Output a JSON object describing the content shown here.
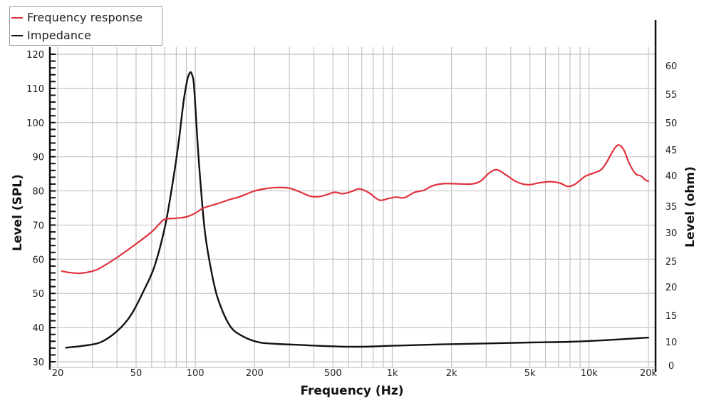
{
  "chart_data": {
    "type": "line",
    "title": "",
    "xlabel": "Frequency (Hz)",
    "ylabel": "Level (SPL)",
    "y2label": "Level (ohm)",
    "xscale": "log",
    "xlim": [
      20,
      20000
    ],
    "ylim": [
      30,
      120
    ],
    "y2_tick_labels": [
      "60",
      "55",
      "50",
      "45",
      "40",
      "35",
      "30",
      "25",
      "20",
      "15",
      "10",
      "0"
    ],
    "x_tick_labels": [
      "20",
      "50",
      "100",
      "200",
      "500",
      "1k",
      "2k",
      "5k",
      "10k",
      "20k"
    ],
    "x_tick_values": [
      20,
      50,
      100,
      200,
      500,
      1000,
      2000,
      5000,
      10000,
      20000
    ],
    "y_tick_labels": [
      "120",
      "110",
      "100",
      "90",
      "80",
      "70",
      "60",
      "50",
      "40",
      "30"
    ],
    "y_tick_values": [
      120,
      110,
      100,
      90,
      80,
      70,
      60,
      50,
      40,
      30
    ],
    "grid": true,
    "legend_position": "top-left",
    "colors": {
      "frequency_response": "#e0323c",
      "impedance": "#111111",
      "grid": "#c4c4c4",
      "axis": "#111111"
    },
    "series": [
      {
        "name": "Frequency response",
        "axis": "left",
        "unit": "dB SPL",
        "x": [
          21,
          23,
          26,
          30,
          33,
          40,
          50,
          60,
          66,
          70,
          80,
          90,
          100,
          110,
          130,
          150,
          170,
          200,
          230,
          260,
          300,
          340,
          380,
          420,
          460,
          510,
          560,
          620,
          680,
          760,
          860,
          960,
          1050,
          1150,
          1300,
          1450,
          1600,
          1800,
          2100,
          2500,
          2800,
          3100,
          3400,
          3800,
          4300,
          4900,
          5500,
          6300,
          7100,
          7800,
          8500,
          9500,
          10500,
          11500,
          12300,
          13000,
          13600,
          14200,
          15000,
          16000,
          17200,
          18300,
          19200,
          20000
        ],
        "values": [
          56.5,
          56.1,
          55.9,
          56.5,
          57.5,
          60.5,
          64.5,
          68.0,
          70.5,
          71.7,
          72.0,
          72.4,
          73.5,
          75.0,
          76.3,
          77.5,
          78.4,
          80.0,
          80.7,
          81.0,
          80.8,
          79.7,
          78.5,
          78.3,
          78.8,
          79.6,
          79.2,
          79.8,
          80.6,
          79.5,
          77.3,
          77.8,
          78.2,
          78.0,
          79.6,
          80.2,
          81.5,
          82.1,
          82.1,
          82.0,
          82.8,
          85.2,
          86.2,
          84.6,
          82.6,
          81.8,
          82.3,
          82.7,
          82.3,
          81.3,
          82.0,
          84.2,
          85.2,
          86.2,
          88.5,
          91.0,
          92.8,
          93.4,
          92.0,
          88.0,
          85.0,
          84.4,
          83.3,
          82.8
        ]
      },
      {
        "name": "Impedance",
        "axis": "right",
        "unit": "ohm",
        "x": [
          22,
          27,
          33,
          40,
          47,
          55,
          62,
          70,
          76,
          82,
          87,
          91,
          94,
          96,
          98,
          100,
          103,
          107,
          112,
          120,
          130,
          150,
          175,
          210,
          260,
          350,
          450,
          600,
          750,
          900,
          1200,
          1800,
          3000,
          5000,
          8000,
          12000,
          20000
        ],
        "values": [
          7.5,
          8.3,
          9.8,
          12.0,
          15.0,
          19.5,
          24.0,
          31.0,
          38.0,
          46.0,
          53.5,
          57.5,
          58.8,
          58.5,
          57.2,
          53.0,
          45.5,
          37.5,
          30.0,
          23.5,
          18.0,
          13.0,
          11.0,
          9.8,
          9.1,
          8.6,
          8.2,
          7.9,
          7.95,
          8.2,
          8.5,
          8.9,
          9.3,
          9.7,
          10.0,
          10.3,
          10.8
        ]
      }
    ]
  },
  "legend": {
    "items": [
      {
        "label": "Frequency response",
        "color": "#e0323c"
      },
      {
        "label": "Impedance",
        "color": "#111111"
      }
    ]
  },
  "axes": {
    "x_title": "Frequency (Hz)",
    "y_left_title": "Level (SPL)",
    "y_right_title": "Level (ohm)"
  }
}
